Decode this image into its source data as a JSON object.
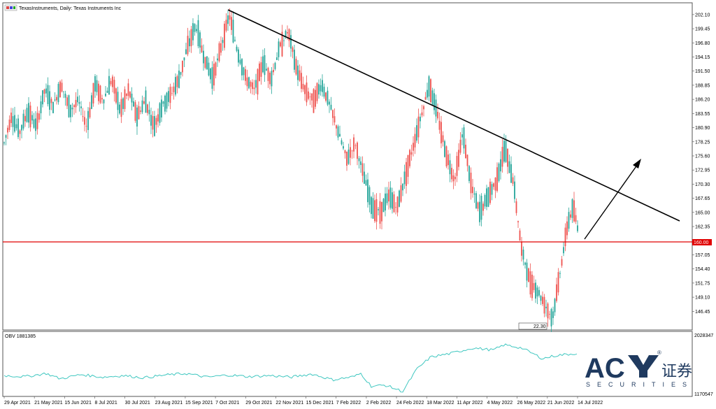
{
  "header": {
    "symbol_title": "TexasInstruments, Daily:  Texas Instruments Inc"
  },
  "obv": {
    "label": "OBV 1881385",
    "top_value": "2028347",
    "bottom_value": "1170547"
  },
  "colors": {
    "bull": "#26a69a",
    "bear": "#ef5350",
    "support": "#e00000",
    "trend": "#000000",
    "obv": "#3fc7c0",
    "logo": "#1f3a5f"
  },
  "logo": {
    "brand": "AC",
    "chinese": "证券",
    "sub": "SECURITIES",
    "reg": "®"
  },
  "chart_data": {
    "type": "candlestick",
    "title": "TexasInstruments, Daily:  Texas Instruments Inc",
    "ylim": [
      144.0,
      203.0
    ],
    "y_ticks": [
      "202.10",
      "199.45",
      "196.80",
      "194.15",
      "191.50",
      "188.85",
      "186.20",
      "183.55",
      "180.90",
      "178.25",
      "175.60",
      "172.95",
      "170.30",
      "167.65",
      "165.00",
      "162.35",
      "157.05",
      "154.40",
      "151.75",
      "149.10",
      "146.45"
    ],
    "x_ticks": [
      "29 Apr 2021",
      "21 May 2021",
      "15 Jun 2021",
      "8 Jul 2021",
      "30 Jul 2021",
      "23 Aug 2021",
      "15 Sep 2021",
      "7 Oct 2021",
      "29 Oct 2021",
      "22 Nov 2021",
      "15 Dec 2021",
      "7 Feb 2022",
      "2 Feb 2022",
      "24 Feb 2022",
      "18 Mar 2022",
      "11 Apr 2022",
      "4 May 2022",
      "26 May 2022",
      "21 Jun 2022",
      "14 Jul 2022"
    ],
    "support_level": {
      "value": 160.0,
      "label": "160.00"
    },
    "trendline": {
      "from": [
        "7 Oct 2021",
        202.3
      ],
      "to": [
        "end",
        163.0
      ]
    },
    "projection_arrow": {
      "from": 160.5,
      "to": 174.0
    },
    "gap_marker": {
      "label": "22.30",
      "value": 145.2
    },
    "price_path": [
      [
        0,
        178
      ],
      [
        10,
        183
      ],
      [
        22,
        180
      ],
      [
        34,
        184
      ],
      [
        46,
        181
      ],
      [
        58,
        188
      ],
      [
        70,
        185
      ],
      [
        82,
        189
      ],
      [
        94,
        184
      ],
      [
        106,
        186
      ],
      [
        118,
        181
      ],
      [
        130,
        189
      ],
      [
        142,
        186
      ],
      [
        154,
        190
      ],
      [
        166,
        184
      ],
      [
        178,
        188
      ],
      [
        190,
        183
      ],
      [
        202,
        186
      ],
      [
        214,
        181
      ],
      [
        226,
        185
      ],
      [
        238,
        187
      ],
      [
        250,
        190
      ],
      [
        262,
        196
      ],
      [
        274,
        200
      ],
      [
        286,
        194
      ],
      [
        298,
        190
      ],
      [
        310,
        196
      ],
      [
        322,
        202
      ],
      [
        334,
        195
      ],
      [
        346,
        190
      ],
      [
        358,
        188
      ],
      [
        370,
        193
      ],
      [
        382,
        190
      ],
      [
        394,
        196
      ],
      [
        406,
        199
      ],
      [
        418,
        192
      ],
      [
        430,
        188
      ],
      [
        442,
        186
      ],
      [
        454,
        189
      ],
      [
        466,
        185
      ],
      [
        478,
        180
      ],
      [
        490,
        175
      ],
      [
        502,
        178
      ],
      [
        514,
        172
      ],
      [
        526,
        166
      ],
      [
        538,
        165
      ],
      [
        550,
        168
      ],
      [
        562,
        166
      ],
      [
        574,
        172
      ],
      [
        586,
        178
      ],
      [
        598,
        184
      ],
      [
        608,
        189
      ],
      [
        620,
        183
      ],
      [
        632,
        176
      ],
      [
        644,
        171
      ],
      [
        656,
        180
      ],
      [
        668,
        170
      ],
      [
        680,
        165
      ],
      [
        692,
        168
      ],
      [
        704,
        171
      ],
      [
        716,
        177
      ],
      [
        728,
        171
      ],
      [
        740,
        158
      ],
      [
        752,
        152
      ],
      [
        764,
        150
      ],
      [
        776,
        147
      ],
      [
        784,
        145
      ],
      [
        794,
        153
      ],
      [
        806,
        163
      ],
      [
        814,
        166
      ],
      [
        820,
        162
      ]
    ],
    "obv_path": [
      [
        0,
        0.3
      ],
      [
        30,
        0.28
      ],
      [
        60,
        0.34
      ],
      [
        80,
        0.24
      ],
      [
        110,
        0.32
      ],
      [
        140,
        0.27
      ],
      [
        170,
        0.3
      ],
      [
        200,
        0.26
      ],
      [
        230,
        0.31
      ],
      [
        260,
        0.34
      ],
      [
        290,
        0.27
      ],
      [
        320,
        0.31
      ],
      [
        350,
        0.28
      ],
      [
        380,
        0.3
      ],
      [
        410,
        0.27
      ],
      [
        440,
        0.33
      ],
      [
        470,
        0.22
      ],
      [
        500,
        0.28
      ],
      [
        510,
        0.34
      ],
      [
        525,
        0.1
      ],
      [
        545,
        0.12
      ],
      [
        570,
        0.0
      ],
      [
        590,
        0.42
      ],
      [
        610,
        0.65
      ],
      [
        640,
        0.72
      ],
      [
        670,
        0.82
      ],
      [
        700,
        0.78
      ],
      [
        715,
        0.88
      ],
      [
        740,
        0.82
      ],
      [
        770,
        0.62
      ],
      [
        790,
        0.68
      ],
      [
        820,
        0.72
      ]
    ]
  }
}
